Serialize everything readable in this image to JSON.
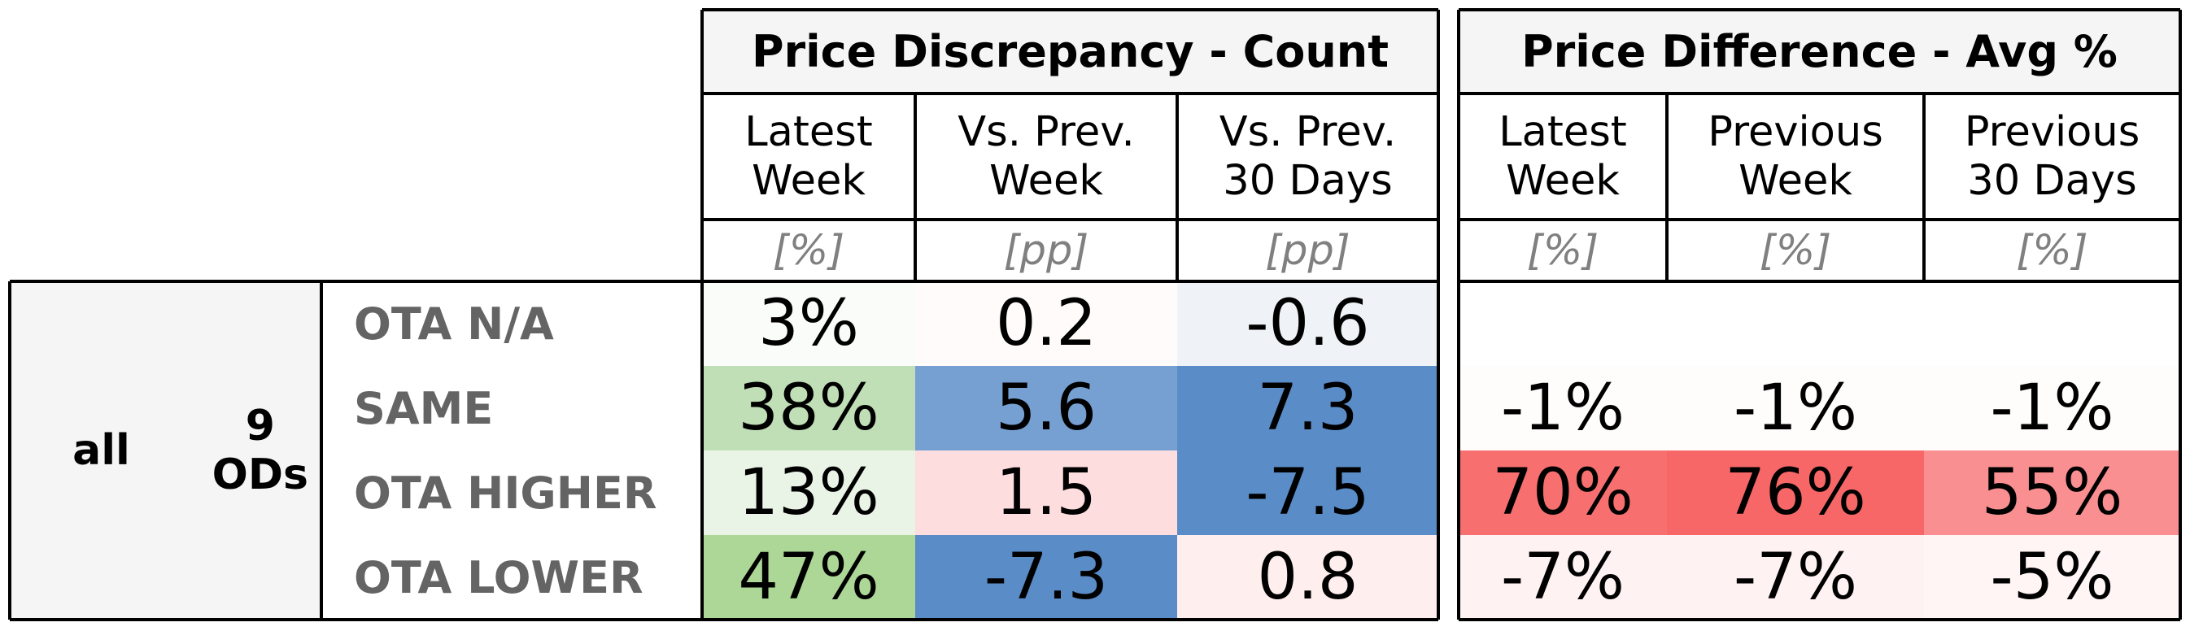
{
  "chart_data": {
    "type": "table",
    "groups": [
      {
        "title": "Price Discrepancy - Count",
        "columns": [
          {
            "label": "Latest\nWeek",
            "unit": "[%]"
          },
          {
            "label": "Vs. Prev.\nWeek",
            "unit": "[pp]"
          },
          {
            "label": "Vs. Prev.\n30 Days",
            "unit": "[pp]"
          }
        ]
      },
      {
        "title": "Price Difference - Avg %",
        "columns": [
          {
            "label": "Latest\nWeek",
            "unit": "[%]"
          },
          {
            "label": "Previous\nWeek",
            "unit": "[%]"
          },
          {
            "label": "Previous\n30 Days",
            "unit": "[%]"
          }
        ]
      }
    ],
    "row_group": {
      "segment": "all",
      "ods": "9\nODs"
    },
    "rows": [
      {
        "label": "OTA N/A",
        "count": [
          "3%",
          "0.2",
          "-0.6"
        ],
        "avg": [
          "",
          "",
          ""
        ],
        "count_colors": [
          "#fafcf9",
          "#fffbfb",
          "#eff3f8"
        ],
        "avg_colors": [
          "#ffffff",
          "#ffffff",
          "#ffffff"
        ]
      },
      {
        "label": "SAME",
        "count": [
          "38%",
          "5.6",
          "7.3"
        ],
        "avg": [
          "-1%",
          "-1%",
          "-1%"
        ],
        "count_colors": [
          "#c0dfb6",
          "#769fd2",
          "#5a8cc8"
        ],
        "avg_colors": [
          "#fffcfc",
          "#fffcfc",
          "#fffcfc"
        ]
      },
      {
        "label": "OTA HIGHER",
        "count": [
          "13%",
          "1.5",
          "-7.5"
        ],
        "avg": [
          "70%",
          "76%",
          "55%"
        ],
        "count_colors": [
          "#e9f4e6",
          "#fdddde",
          "#5a8cc8"
        ],
        "avg_colors": [
          "#f86f6f",
          "#f76767",
          "#f98f91"
        ]
      },
      {
        "label": "OTA LOWER",
        "count": [
          "47%",
          "-7.3",
          "0.8"
        ],
        "avg": [
          "-7%",
          "-7%",
          "-5%"
        ],
        "count_colors": [
          "#add796",
          "#5a8cc8",
          "#ffeeee"
        ],
        "avg_colors": [
          "#fff2f2",
          "#fff2f2",
          "#fff5f5"
        ]
      }
    ]
  }
}
